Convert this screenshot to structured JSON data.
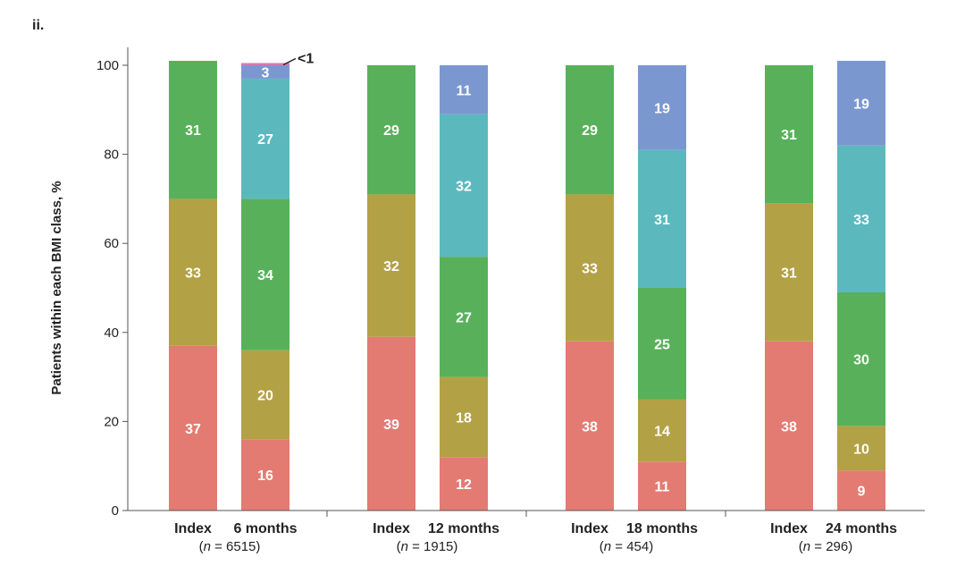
{
  "panel_label": "ii.",
  "colors": {
    "class1": "#e37b73",
    "class2": "#b3a146",
    "class3": "#58b15a",
    "class4": "#5bb9be",
    "class5": "#7b97cf",
    "class6": "#d979b0",
    "axis": "#555555"
  },
  "chart_data": {
    "type": "bar",
    "stacked": true,
    "ylabel": "Patients within each BMI class, %",
    "ylim": [
      0,
      100
    ],
    "yticks": [
      0,
      20,
      40,
      60,
      80,
      100
    ],
    "groups": [
      {
        "n_prefix": "(",
        "n_symbol": "n",
        "n_value": " = 6515)"
      },
      {
        "n_prefix": "(",
        "n_symbol": "n",
        "n_value": " = 1915)"
      },
      {
        "n_prefix": "(",
        "n_symbol": "n",
        "n_value": " = 454)"
      },
      {
        "n_prefix": "(",
        "n_symbol": "n",
        "n_value": " = 296)"
      }
    ],
    "bars": [
      {
        "label": "Index",
        "group": 0,
        "segments": [
          {
            "class": "class1",
            "value": 37,
            "label": "37"
          },
          {
            "class": "class2",
            "value": 33,
            "label": "33"
          },
          {
            "class": "class3",
            "value": 31,
            "label": "31"
          }
        ]
      },
      {
        "label": "6 months",
        "group": 0,
        "segments": [
          {
            "class": "class1",
            "value": 16,
            "label": "16"
          },
          {
            "class": "class2",
            "value": 20,
            "label": "20"
          },
          {
            "class": "class3",
            "value": 34,
            "label": "34"
          },
          {
            "class": "class4",
            "value": 27,
            "label": "27"
          },
          {
            "class": "class5",
            "value": 3,
            "label": "3"
          },
          {
            "class": "class6",
            "value": 0.5,
            "label": ""
          }
        ]
      },
      {
        "label": "Index",
        "group": 1,
        "segments": [
          {
            "class": "class1",
            "value": 39,
            "label": "39"
          },
          {
            "class": "class2",
            "value": 32,
            "label": "32"
          },
          {
            "class": "class3",
            "value": 29,
            "label": "29"
          }
        ]
      },
      {
        "label": "12 months",
        "group": 1,
        "segments": [
          {
            "class": "class1",
            "value": 12,
            "label": "12"
          },
          {
            "class": "class2",
            "value": 18,
            "label": "18"
          },
          {
            "class": "class3",
            "value": 27,
            "label": "27"
          },
          {
            "class": "class4",
            "value": 32,
            "label": "32"
          },
          {
            "class": "class5",
            "value": 11,
            "label": "11"
          }
        ]
      },
      {
        "label": "Index",
        "group": 2,
        "segments": [
          {
            "class": "class1",
            "value": 38,
            "label": "38"
          },
          {
            "class": "class2",
            "value": 33,
            "label": "33"
          },
          {
            "class": "class3",
            "value": 29,
            "label": "29"
          }
        ]
      },
      {
        "label": "18 months",
        "group": 2,
        "segments": [
          {
            "class": "class1",
            "value": 11,
            "label": "11"
          },
          {
            "class": "class2",
            "value": 14,
            "label": "14"
          },
          {
            "class": "class3",
            "value": 25,
            "label": "25"
          },
          {
            "class": "class4",
            "value": 31,
            "label": "31"
          },
          {
            "class": "class5",
            "value": 19,
            "label": "19"
          }
        ]
      },
      {
        "label": "Index",
        "group": 3,
        "segments": [
          {
            "class": "class1",
            "value": 38,
            "label": "38"
          },
          {
            "class": "class2",
            "value": 31,
            "label": "31"
          },
          {
            "class": "class3",
            "value": 31,
            "label": "31"
          }
        ]
      },
      {
        "label": "24 months",
        "group": 3,
        "segments": [
          {
            "class": "class1",
            "value": 9,
            "label": "9"
          },
          {
            "class": "class2",
            "value": 10,
            "label": "10"
          },
          {
            "class": "class3",
            "value": 30,
            "label": "30"
          },
          {
            "class": "class4",
            "value": 33,
            "label": "33"
          },
          {
            "class": "class5",
            "value": 19,
            "label": "19"
          }
        ]
      }
    ],
    "annotations": [
      {
        "text": "<1",
        "bar": 1,
        "class": "class6"
      }
    ]
  }
}
